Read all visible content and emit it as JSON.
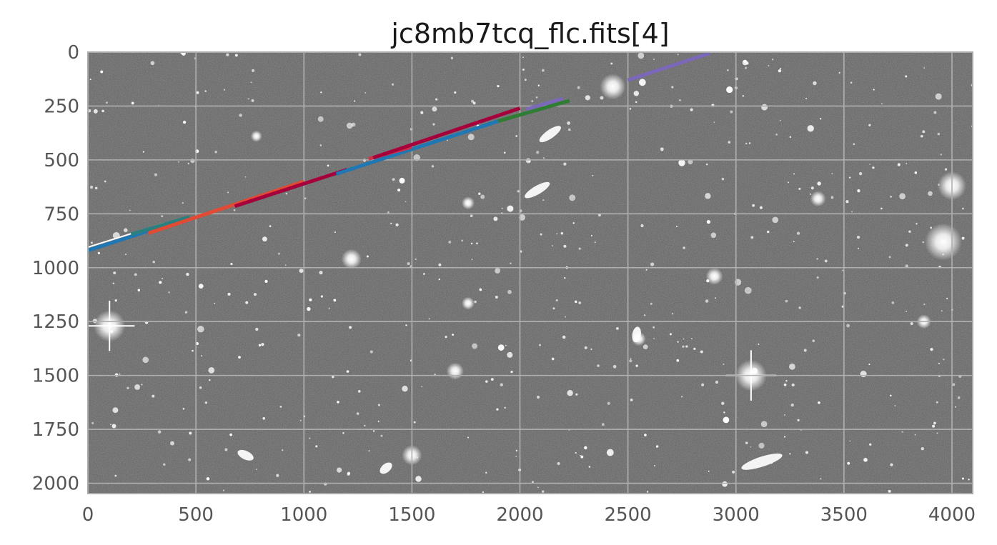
{
  "chart_data": {
    "type": "image",
    "title": "jc8mb7tcq_flc.fits[4]",
    "xlabel": "",
    "ylabel": "",
    "xlim": [
      0,
      4096
    ],
    "ylim": [
      2048,
      0
    ],
    "grid": true,
    "x_ticks": [
      0,
      500,
      1000,
      1500,
      2000,
      2500,
      3000,
      3500,
      4000
    ],
    "y_ticks": [
      0,
      250,
      500,
      750,
      1000,
      1250,
      1500,
      1750,
      2000
    ],
    "x_tick_labels": [
      "0",
      "500",
      "1000",
      "1500",
      "2000",
      "2500",
      "3000",
      "3500",
      "4000"
    ],
    "y_tick_labels": [
      "0",
      "250",
      "500",
      "750",
      "1000",
      "1250",
      "1500",
      "1750",
      "2000"
    ],
    "streak_segments": [
      {
        "color": "#1f77b4",
        "x": [
          0,
          450
        ],
        "y": [
          920,
          775
        ]
      },
      {
        "color": "#ffffff",
        "x": [
          0,
          350
        ],
        "y": [
          905,
          795
        ]
      },
      {
        "color": "#2a7f7f",
        "x": [
          200,
          470
        ],
        "y": [
          845,
          765
        ]
      },
      {
        "color": "#e24a33",
        "x": [
          280,
          1000
        ],
        "y": [
          840,
          600
        ]
      },
      {
        "color": "#a6003c",
        "x": [
          680,
          1200
        ],
        "y": [
          715,
          545
        ]
      },
      {
        "color": "#1f77b4",
        "x": [
          1150,
          1900
        ],
        "y": [
          565,
          320
        ]
      },
      {
        "color": "#c8334a",
        "x": [
          1300,
          1500
        ],
        "y": [
          495,
          440
        ]
      },
      {
        "color": "#a6003c",
        "x": [
          1320,
          2000
        ],
        "y": [
          490,
          260
        ]
      },
      {
        "color": "#2e7d32",
        "x": [
          1900,
          2230
        ],
        "y": [
          320,
          225
        ]
      },
      {
        "color": "#7b68b8",
        "x": [
          2030,
          2200
        ],
        "y": [
          265,
          215
        ]
      },
      {
        "color": "#7b68b8",
        "x": [
          2500,
          2880
        ],
        "y": [
          130,
          5
        ]
      }
    ],
    "bright_sources": [
      {
        "x": 100,
        "y": 1270,
        "size": 22,
        "spikes": true
      },
      {
        "x": 3070,
        "y": 1500,
        "size": 22,
        "spikes": true
      },
      {
        "x": 1220,
        "y": 960,
        "size": 14,
        "spikes": false
      },
      {
        "x": 2430,
        "y": 160,
        "size": 18,
        "spikes": false
      },
      {
        "x": 3960,
        "y": 880,
        "size": 26,
        "spikes": false
      },
      {
        "x": 4000,
        "y": 620,
        "size": 20,
        "spikes": false
      },
      {
        "x": 1700,
        "y": 1480,
        "size": 12,
        "spikes": false
      },
      {
        "x": 1500,
        "y": 1870,
        "size": 14,
        "spikes": false
      },
      {
        "x": 2900,
        "y": 1040,
        "size": 12,
        "spikes": false
      },
      {
        "x": 3870,
        "y": 1250,
        "size": 10,
        "spikes": false
      },
      {
        "x": 1760,
        "y": 1165,
        "size": 9,
        "spikes": false
      },
      {
        "x": 3380,
        "y": 680,
        "size": 11,
        "spikes": false
      },
      {
        "x": 2550,
        "y": 1330,
        "size": 10,
        "spikes": false
      },
      {
        "x": 780,
        "y": 390,
        "size": 8,
        "spikes": false
      },
      {
        "x": 1760,
        "y": 700,
        "size": 9,
        "spikes": false
      }
    ],
    "extended_sources": [
      {
        "x": 3120,
        "y": 1900,
        "rx": 30,
        "ry": 7,
        "angle": -18
      },
      {
        "x": 2080,
        "y": 640,
        "rx": 20,
        "ry": 6,
        "angle": -30
      },
      {
        "x": 2140,
        "y": 380,
        "rx": 18,
        "ry": 6,
        "angle": -35
      },
      {
        "x": 730,
        "y": 1870,
        "rx": 12,
        "ry": 6,
        "angle": 25
      },
      {
        "x": 1380,
        "y": 1930,
        "rx": 10,
        "ry": 6,
        "angle": -40
      },
      {
        "x": 2540,
        "y": 1310,
        "rx": 6,
        "ry": 11,
        "angle": 10
      }
    ]
  }
}
